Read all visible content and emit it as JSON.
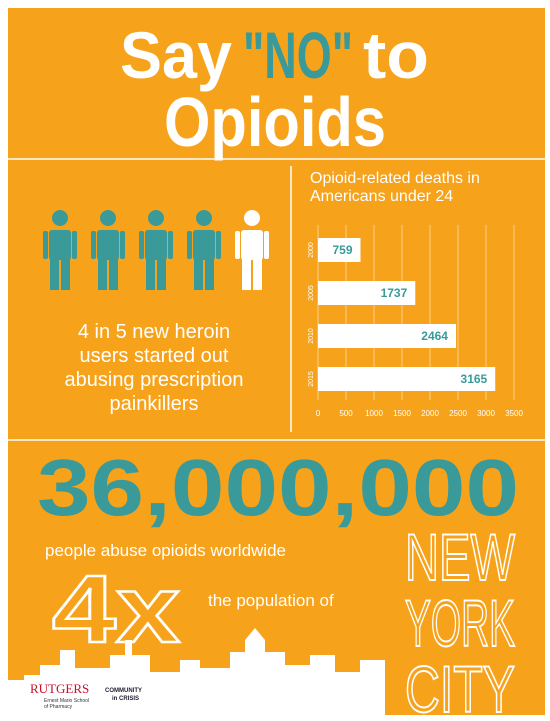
{
  "title": {
    "say": "Say",
    "highlight": "\"NO\"",
    "to": "to",
    "line2": "Opioids"
  },
  "stat": {
    "lines": [
      "4 in 5 new heroin",
      "users started out",
      "abusing prescription",
      "painkillers"
    ]
  },
  "chart_data": {
    "type": "bar",
    "orientation": "horizontal",
    "title": [
      "Opioid-related deaths in",
      "Americans under 24"
    ],
    "categories": [
      "2000",
      "2005",
      "2010",
      "2015"
    ],
    "values": [
      759,
      1737,
      2464,
      3165
    ],
    "color": "#ffffff",
    "label_color": "#3a9a9a",
    "xlim": [
      0,
      3500
    ],
    "xticks": [
      0,
      500,
      1000,
      1500,
      2000,
      2500,
      3000,
      3500
    ],
    "grid": true
  },
  "big_number": "36,000,000",
  "caption": "people abuse opioids worldwide",
  "multiplier": "4x",
  "population_text": "the population of",
  "city": [
    "NEW",
    "YORK",
    "CITY"
  ],
  "logos": {
    "rutgers": "RUTGERS",
    "school": [
      "Ernest Mario School",
      "of Pharmacy"
    ],
    "community": [
      "COMMUNITY",
      "in CRISIS"
    ]
  }
}
